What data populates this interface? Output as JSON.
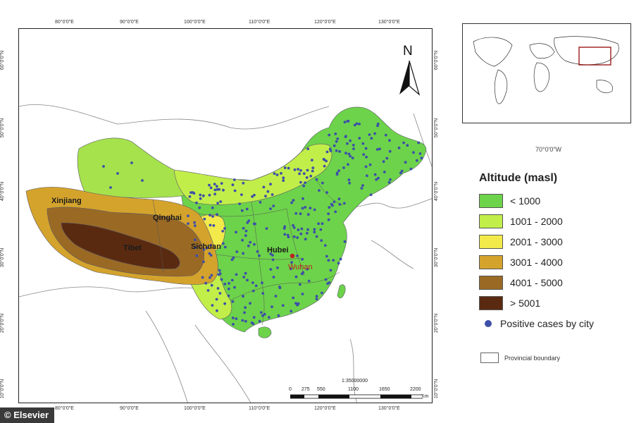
{
  "grid": {
    "top_ticks": [
      "80°0'0\"E",
      "90°0'0\"E",
      "100°0'0\"E",
      "110°0'0\"E",
      "120°0'0\"E",
      "130°0'0\"E"
    ],
    "bottom_ticks": [
      "80°0'0\"E",
      "90°0'0\"E",
      "100°0'0\"E",
      "110°0'0\"E",
      "120°0'0\"E",
      "130°0'0\"E"
    ],
    "left_ticks": [
      "60°0'0\"N",
      "50°0'0\"N",
      "40°0'0\"N",
      "30°0'0\"N",
      "20°0'0\"N",
      "10°0'0\"N"
    ],
    "right_ticks": [
      "60°0'0\"N",
      "50°0'0\"N",
      "40°0'0\"N",
      "30°0'0\"N",
      "20°0'0\"N",
      "10°0'0\"N"
    ]
  },
  "map_labels": {
    "xinjiang": "Xinjiang",
    "qinghai": "Qinghai",
    "tibet": "Tibet",
    "sichuan": "Sichuan",
    "hubei": "Hubei",
    "wuhan": "Wuhan"
  },
  "north_arrow": "N",
  "scale": {
    "ticks": [
      "0",
      "275",
      "550",
      "1100",
      "1650",
      "2200"
    ],
    "unit": "Km",
    "ratio": "1:35000000"
  },
  "inset": {
    "coord_label": "70°0'0\"W"
  },
  "legend": {
    "title": "Altitude (masl)",
    "classes": [
      {
        "label": "< 1000",
        "color": "#6dd34a"
      },
      {
        "label": "1001 - 2000",
        "color": "#c2ee4a"
      },
      {
        "label": "2001 - 3000",
        "color": "#f2ea4a"
      },
      {
        "label": "3001 - 4000",
        "color": "#d4a32c"
      },
      {
        "label": "4001 - 5000",
        "color": "#9a6a25"
      },
      {
        "label": "> 5001",
        "color": "#5a2a10"
      }
    ],
    "cases_label": "Positive cases by city",
    "cases_color": "#3e4fa8",
    "boundary_label": "Provincial boundary"
  },
  "credit": "© Elsevier"
}
